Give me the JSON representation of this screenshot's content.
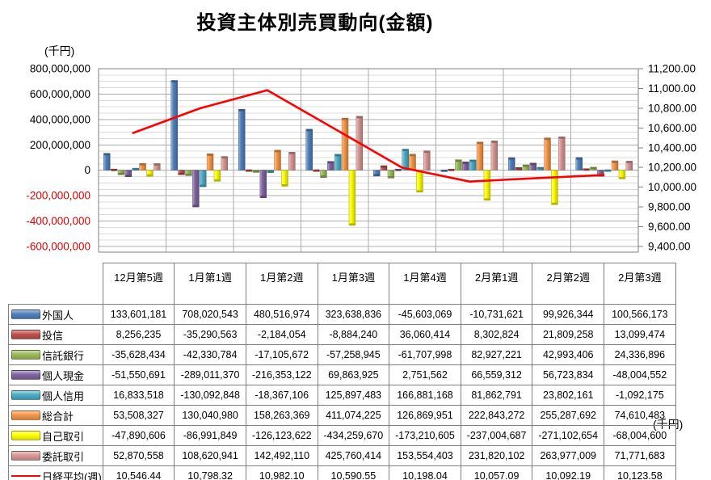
{
  "title": "投資主体別売買動向(金額)",
  "left_axis_unit": "(千円)",
  "right_axis_unit": "(千円)",
  "chart_data": {
    "type": "bar+line",
    "categories": [
      "12月第5週",
      "1月第1週",
      "1月第2週",
      "1月第3週",
      "1月第4週",
      "2月第1週",
      "2月第2週",
      "2月第3週"
    ],
    "series": [
      {
        "name": "外国人",
        "color": "#4F81BD",
        "values": [
          133601181,
          708020543,
          480516974,
          323638836,
          -45603069,
          -10731621,
          99926344,
          100566173
        ]
      },
      {
        "name": "投信",
        "color": "#C0504D",
        "values": [
          8256235,
          -35290563,
          -2184054,
          -8884240,
          36060414,
          8302824,
          21809258,
          13099474
        ]
      },
      {
        "name": "信託銀行",
        "color": "#9BBB59",
        "values": [
          -35628434,
          -42330784,
          -17105672,
          -57258945,
          -61707998,
          82927221,
          42993406,
          24336896
        ]
      },
      {
        "name": "個人現金",
        "color": "#8064A2",
        "values": [
          -51550691,
          -289011370,
          -216353122,
          69863925,
          2751562,
          66559312,
          56723834,
          -48004552
        ]
      },
      {
        "name": "個人信用",
        "color": "#4BACC6",
        "values": [
          16833518,
          -130092848,
          -18367106,
          125897483,
          166881168,
          81862791,
          23802161,
          -1092175
        ]
      },
      {
        "name": "総合計",
        "color": "#F79646",
        "values": [
          53508327,
          130040980,
          158263369,
          411074225,
          126869951,
          222843272,
          255287692,
          74610483
        ]
      },
      {
        "name": "自己取引",
        "color": "#FFFF00",
        "values": [
          -47890606,
          -86991849,
          -126123622,
          -434259670,
          -173210605,
          -237004687,
          -271102654,
          -68004600
        ]
      },
      {
        "name": "委託取引",
        "color": "#D99694",
        "values": [
          52870558,
          108620941,
          142492110,
          425760414,
          153554403,
          231820102,
          263977009,
          71771683
        ]
      }
    ],
    "line_series": {
      "name": "日経平均(週)",
      "color": "#FF0000",
      "values": [
        10546.44,
        10798.32,
        10982.1,
        10590.55,
        10198.04,
        10057.09,
        10092.19,
        10123.58
      ]
    },
    "y_left": {
      "min": -600000000,
      "max": 800000000,
      "major": 200000000,
      "minor": 50000000,
      "negative_label_color": "#E00000"
    },
    "y_right": {
      "min": 9400,
      "max": 11200,
      "major": 200
    },
    "grid": true,
    "legend_position": "table-left"
  }
}
